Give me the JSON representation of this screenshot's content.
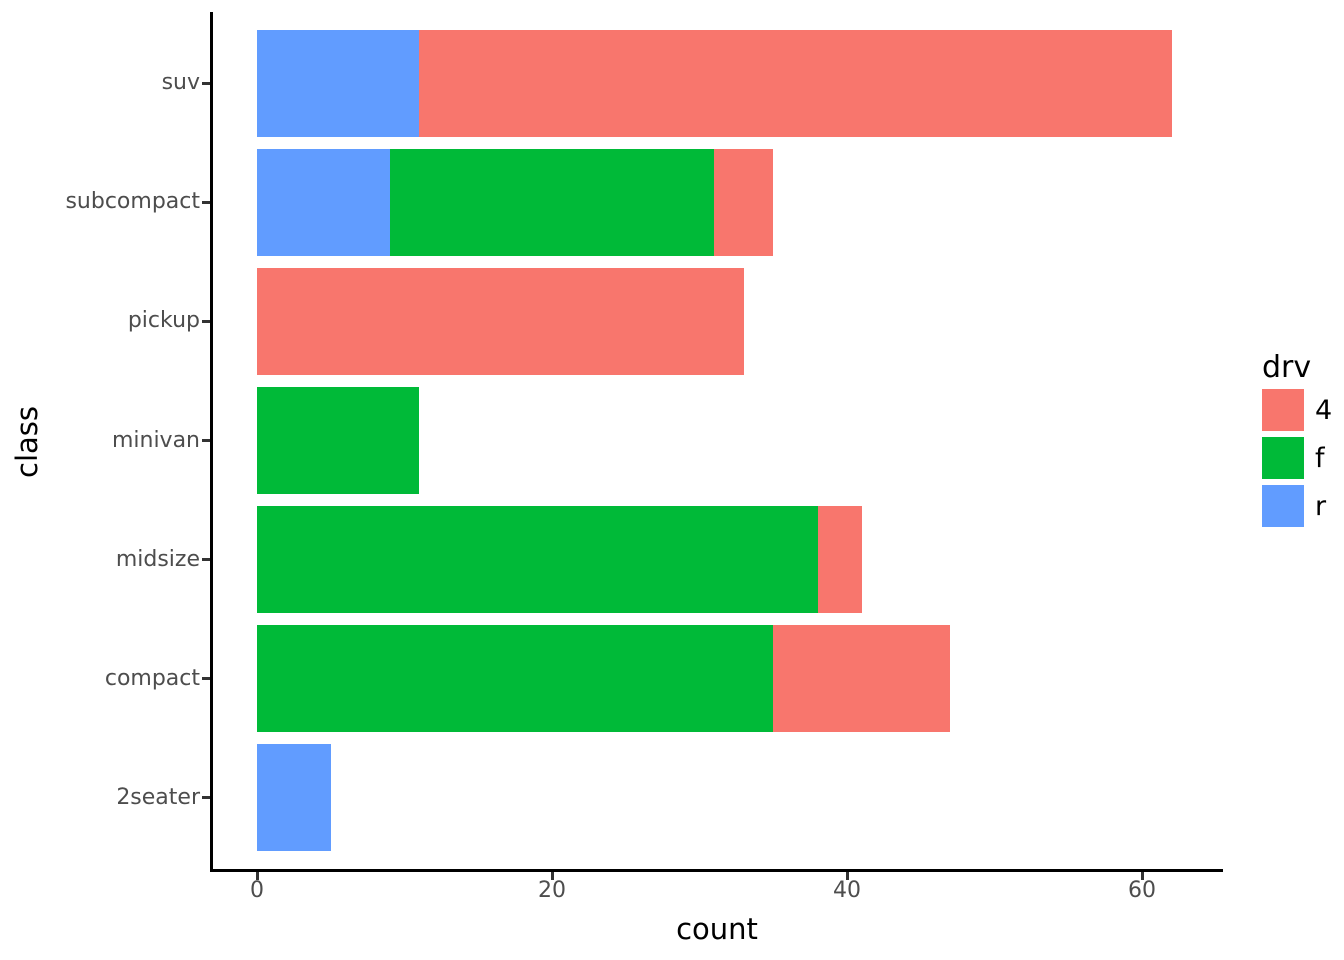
{
  "chart_data": {
    "type": "bar",
    "orientation": "horizontal",
    "stacked": true,
    "title": "",
    "xlabel": "count",
    "ylabel": "class",
    "categories": [
      "suv",
      "subcompact",
      "pickup",
      "minivan",
      "midsize",
      "compact",
      "2seater"
    ],
    "x_ticks": [
      0,
      20,
      40,
      60
    ],
    "xlim": [
      -3.1,
      65.1
    ],
    "grid": false,
    "background": "#ffffff",
    "axis_text_color": "#4d4d4d",
    "axis_line_color": "#000000",
    "series": [
      {
        "name": "r",
        "color": "#619CFF",
        "values": [
          11,
          9,
          0,
          0,
          0,
          0,
          5
        ]
      },
      {
        "name": "f",
        "color": "#00BA38",
        "values": [
          0,
          22,
          0,
          11,
          38,
          35,
          0
        ]
      },
      {
        "name": "4",
        "color": "#F8766D",
        "values": [
          51,
          4,
          33,
          0,
          3,
          12,
          0
        ]
      }
    ],
    "legend": {
      "title": "drv",
      "position": "right",
      "entries": [
        {
          "label": "4",
          "color": "#F8766D"
        },
        {
          "label": "f",
          "color": "#00BA38"
        },
        {
          "label": "r",
          "color": "#619CFF"
        }
      ]
    }
  }
}
